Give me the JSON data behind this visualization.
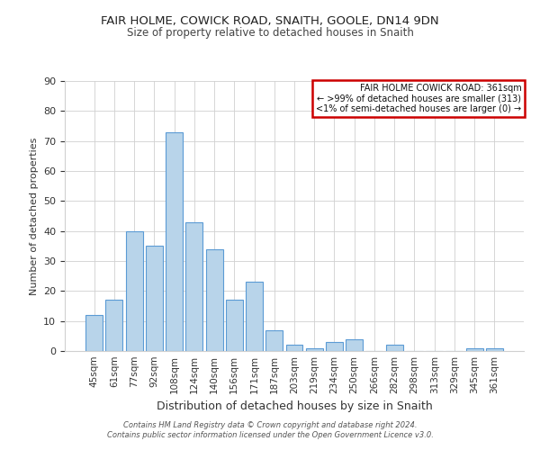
{
  "title": "FAIR HOLME, COWICK ROAD, SNAITH, GOOLE, DN14 9DN",
  "subtitle": "Size of property relative to detached houses in Snaith",
  "xlabel": "Distribution of detached houses by size in Snaith",
  "ylabel": "Number of detached properties",
  "categories": [
    "45sqm",
    "61sqm",
    "77sqm",
    "92sqm",
    "108sqm",
    "124sqm",
    "140sqm",
    "156sqm",
    "171sqm",
    "187sqm",
    "203sqm",
    "219sqm",
    "234sqm",
    "250sqm",
    "266sqm",
    "282sqm",
    "298sqm",
    "313sqm",
    "329sqm",
    "345sqm",
    "361sqm"
  ],
  "values": [
    12,
    17,
    40,
    35,
    73,
    43,
    34,
    17,
    23,
    7,
    2,
    1,
    3,
    4,
    0,
    2,
    0,
    0,
    0,
    1,
    1
  ],
  "bar_color": "#b8d4ea",
  "bar_edge_color": "#5b9bd5",
  "ylim": [
    0,
    90
  ],
  "yticks": [
    0,
    10,
    20,
    30,
    40,
    50,
    60,
    70,
    80,
    90
  ],
  "legend_title": "FAIR HOLME COWICK ROAD: 361sqm",
  "legend_line1": "← >99% of detached houses are smaller (313)",
  "legend_line2": "<1% of semi-detached houses are larger (0) →",
  "legend_box_color": "#ffffff",
  "legend_box_edge": "#cc0000",
  "bg_color": "#ffffff",
  "grid_color": "#d0d0d0",
  "footer1": "Contains HM Land Registry data © Crown copyright and database right 2024.",
  "footer2": "Contains public sector information licensed under the Open Government Licence v3.0."
}
